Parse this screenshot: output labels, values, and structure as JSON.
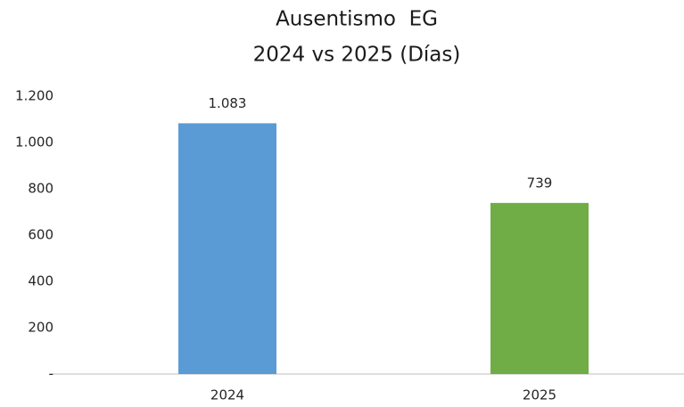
{
  "chart_data": {
    "type": "bar",
    "title": "Ausentismo  EG",
    "subtitle": "2024 vs 2025 (Días)",
    "categories": [
      "2024",
      "2025"
    ],
    "values": [
      1083,
      739
    ],
    "value_labels": [
      "1.083",
      "739"
    ],
    "colors": [
      "#5b9bd5",
      "#70ad47"
    ],
    "ylim": [
      0,
      1200
    ],
    "yticks": [
      {
        "value": 0,
        "label": "-"
      },
      200,
      400,
      600,
      800,
      {
        "value": 1000,
        "label": "1.000"
      },
      {
        "value": 1200,
        "label": "1.200"
      }
    ],
    "grid": false
  }
}
